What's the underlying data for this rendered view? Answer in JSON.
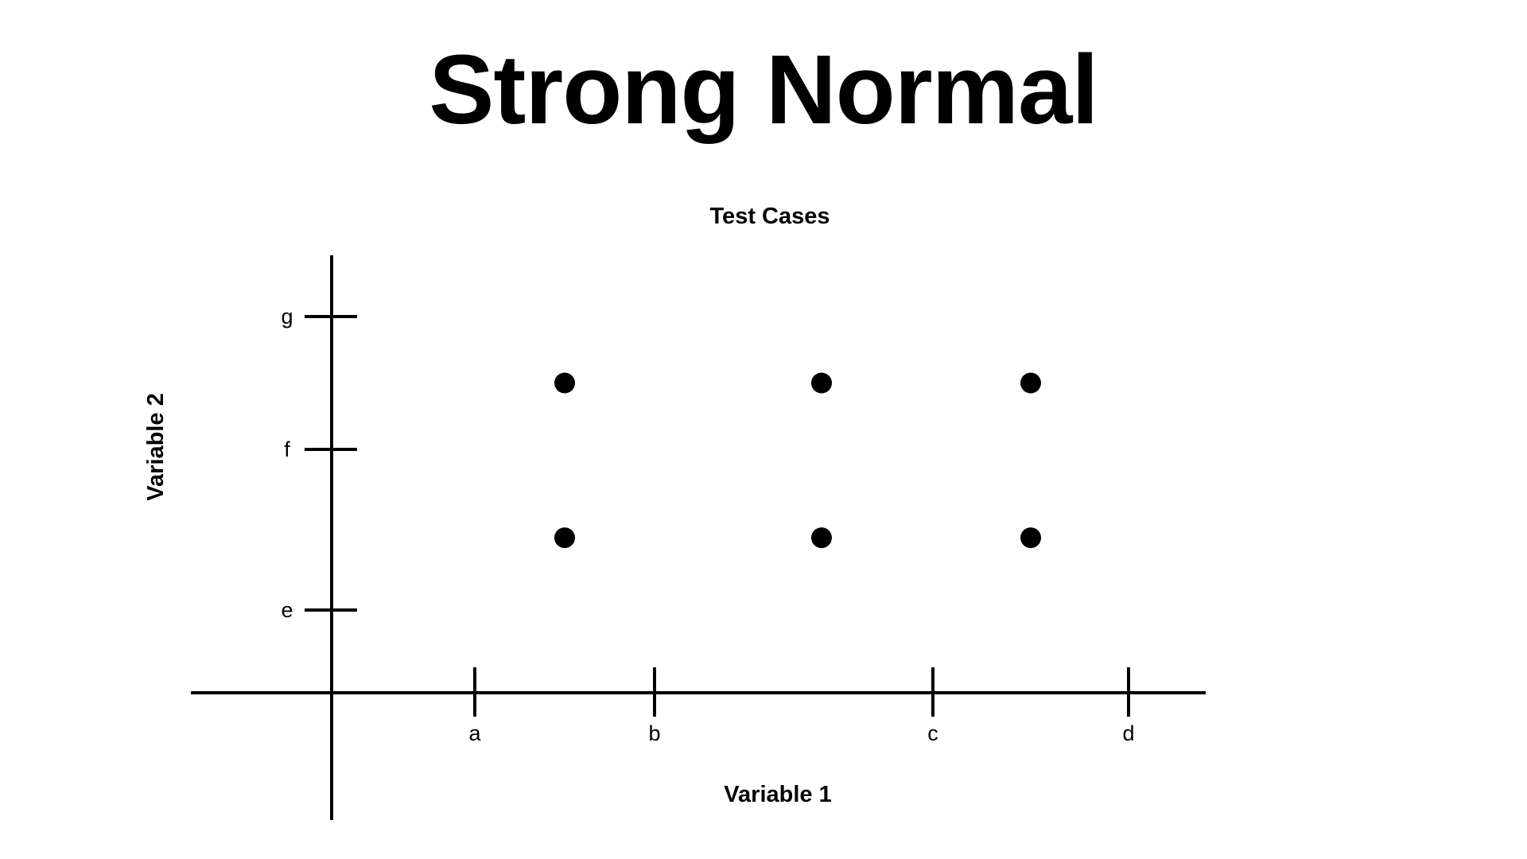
{
  "slide": {
    "title": "Strong Normal"
  },
  "chart_data": {
    "type": "scatter",
    "title": "Test Cases",
    "xlabel": "Variable 1",
    "ylabel": "Variable 2",
    "x_ticks": [
      {
        "label": "a",
        "value": 1
      },
      {
        "label": "b",
        "value": 2
      },
      {
        "label": "c",
        "value": 3
      },
      {
        "label": "d",
        "value": 4
      }
    ],
    "y_ticks": [
      {
        "label": "e",
        "value": 1
      },
      {
        "label": "f",
        "value": 2
      },
      {
        "label": "g",
        "value": 3
      }
    ],
    "points": [
      {
        "x": 1.5,
        "y": 2.5
      },
      {
        "x": 2.6,
        "y": 2.5
      },
      {
        "x": 3.5,
        "y": 2.5
      },
      {
        "x": 1.5,
        "y": 1.45
      },
      {
        "x": 2.6,
        "y": 1.45
      },
      {
        "x": 3.5,
        "y": 1.45
      }
    ],
    "grid": false,
    "legend": "none"
  }
}
